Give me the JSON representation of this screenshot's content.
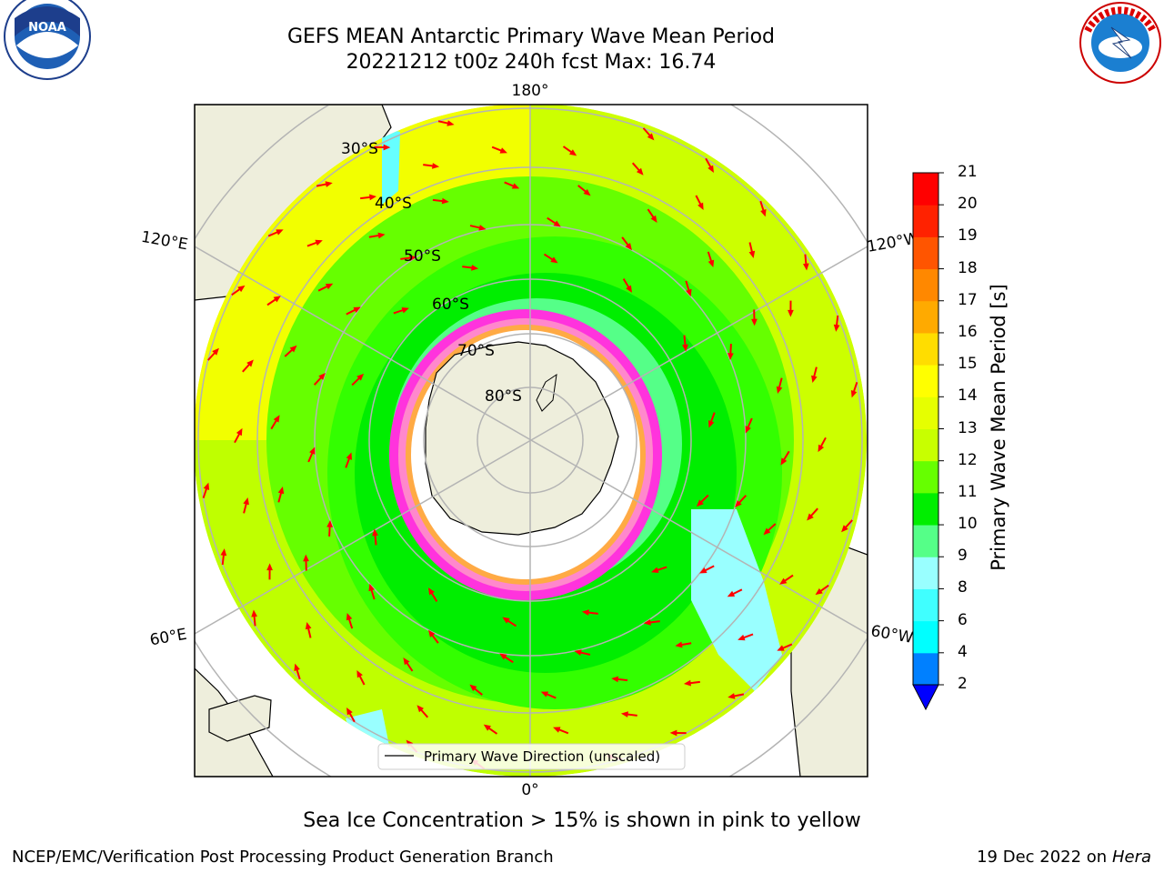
{
  "header": {
    "title_line1": "GEFS MEAN Antarctic Primary Wave Mean Period",
    "title_line2": "20221212 t00z 240h fcst   Max: 16.74"
  },
  "logos": {
    "left": {
      "icon": "noaa-logo",
      "text": "NOAA",
      "ring_text": "NATIONAL OCEANIC AND ATMOSPHERIC ADMINISTRATION · U.S. DEPARTMENT OF COMMERCE"
    },
    "right": {
      "icon": "nws-logo",
      "ring_text": "NATIONAL WEATHER SERVICE"
    }
  },
  "map": {
    "projection": "south-polar-stereographic",
    "longitude_labels": {
      "top": "180°",
      "bottom": "0°",
      "upper_left": "120°E",
      "upper_right": "120°W",
      "lower_left": "60°E",
      "lower_right": "60°W"
    },
    "latitude_labels": [
      "30°S",
      "40°S",
      "50°S",
      "60°S",
      "70°S",
      "80°S"
    ],
    "legend_entry": "Primary Wave Direction (unscaled)",
    "colors": {
      "land": "#eeeedc",
      "ice": "#ffffff",
      "sea_ice_edge": "#ff33dd",
      "arrow": "#ff0000",
      "graticule": "#b4b4b4"
    }
  },
  "colorbar": {
    "label": "Primary Wave Mean Period [s]",
    "ticks": [
      "2",
      "4",
      "6",
      "8",
      "9",
      "10",
      "11",
      "12",
      "13",
      "14",
      "15",
      "16",
      "17",
      "18",
      "19",
      "20",
      "21"
    ],
    "colors": [
      "#0000ff",
      "#0080ff",
      "#00ffff",
      "#40ffff",
      "#99ffff",
      "#55ff88",
      "#00ee00",
      "#66ff00",
      "#c8ff00",
      "#e6ff00",
      "#ffff00",
      "#ffdd00",
      "#ffaa00",
      "#ff8800",
      "#ff5500",
      "#ff2200",
      "#ff0000"
    ]
  },
  "caption": "Sea Ice Concentration > 15% is shown in pink to yellow",
  "footer": {
    "left": "NCEP/EMC/Verification Post Processing Product Generation Branch",
    "right_date": "19 Dec 2022 on",
    "right_machine": "Hera"
  }
}
